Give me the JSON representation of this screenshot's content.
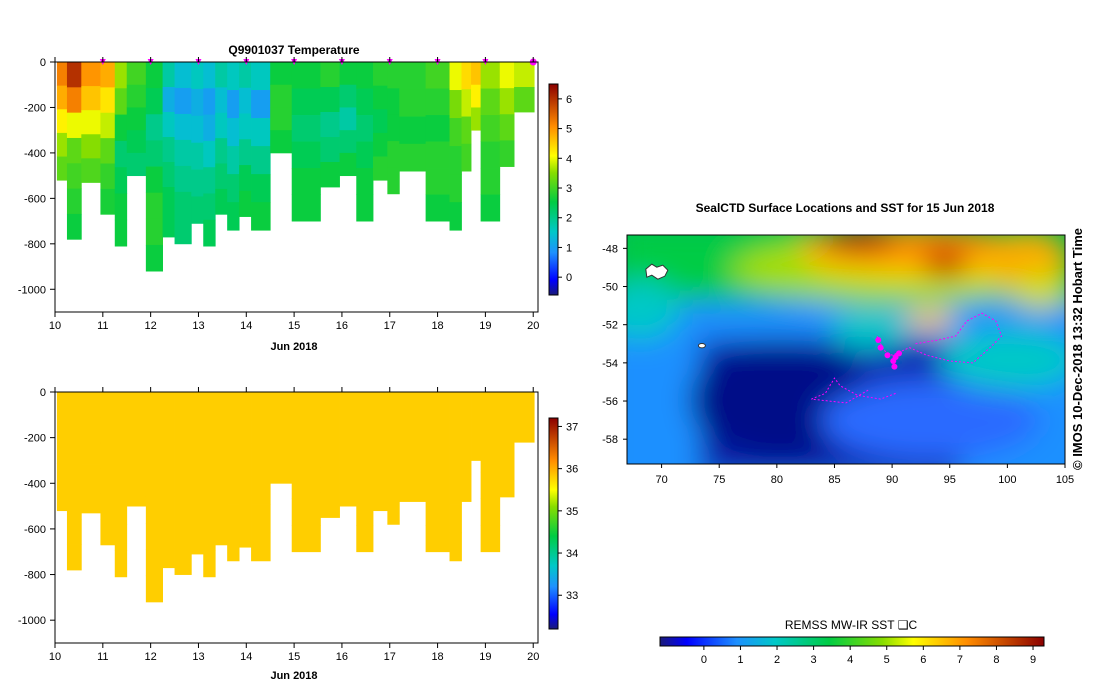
{
  "chart_data": [
    {
      "type": "heatmap",
      "title": "Q9901037  Temperature",
      "xlabel": "Jun 2018",
      "xlim": [
        10,
        20.1
      ],
      "ylim": [
        -1100,
        0
      ],
      "x_ticks": [
        "10",
        "11",
        "12",
        "13",
        "14",
        "15",
        "16",
        "17",
        "18",
        "19",
        "20"
      ],
      "y_ticks": [
        "0",
        "-200",
        "-400",
        "-600",
        "-800",
        "-1000"
      ],
      "colorbar": {
        "min": -0.6,
        "max": 6.5,
        "ticks": [
          "0",
          "1",
          "2",
          "3",
          "4",
          "5",
          "6"
        ]
      },
      "surfacing_days": [
        11,
        12,
        13,
        14,
        15,
        16,
        17,
        18,
        19,
        20
      ],
      "profiles": [
        {
          "day": 10.04,
          "max_depth": 520,
          "temps": [
            5.2,
            4.8,
            4.2,
            3.6,
            3.2
          ]
        },
        {
          "day": 10.25,
          "max_depth": 780,
          "temps": [
            6.0,
            5.2,
            4.0,
            3.2,
            3.0,
            2.8,
            2.6
          ]
        },
        {
          "day": 10.55,
          "max_depth": 530,
          "temps": [
            5.0,
            4.6,
            4.0,
            3.5,
            3.1
          ]
        },
        {
          "day": 10.95,
          "max_depth": 670,
          "temps": [
            4.8,
            4.3,
            3.8,
            3.2,
            2.9,
            2.7
          ]
        },
        {
          "day": 11.25,
          "max_depth": 810,
          "temps": [
            3.6,
            3.2,
            2.6,
            2.2,
            2.4,
            2.6,
            2.6
          ]
        },
        {
          "day": 11.5,
          "max_depth": 500,
          "temps": [
            3.0,
            2.8,
            2.6,
            2.4,
            2.2
          ]
        },
        {
          "day": 11.9,
          "max_depth": 920,
          "temps": [
            2.6,
            2.4,
            2.0,
            2.2,
            2.6,
            2.8,
            2.8,
            2.6
          ]
        },
        {
          "day": 12.25,
          "max_depth": 770,
          "temps": [
            1.8,
            1.2,
            1.6,
            2.0,
            2.2,
            2.4,
            2.4
          ]
        },
        {
          "day": 12.5,
          "max_depth": 800,
          "temps": [
            1.4,
            1.0,
            1.4,
            1.8,
            2.0,
            2.2,
            2.2
          ]
        },
        {
          "day": 12.85,
          "max_depth": 710,
          "temps": [
            1.6,
            1.2,
            1.4,
            1.8,
            2.0,
            2.2
          ]
        },
        {
          "day": 13.1,
          "max_depth": 810,
          "temps": [
            1.4,
            1.0,
            1.2,
            1.6,
            2.0,
            2.2,
            2.4
          ]
        },
        {
          "day": 13.35,
          "max_depth": 670,
          "temps": [
            1.8,
            1.4,
            1.6,
            2.0,
            2.2,
            2.4
          ]
        },
        {
          "day": 13.6,
          "max_depth": 740,
          "temps": [
            1.6,
            1.0,
            1.4,
            1.8,
            2.2,
            2.4
          ]
        },
        {
          "day": 13.85,
          "max_depth": 680,
          "temps": [
            1.8,
            1.4,
            1.6,
            2.0,
            2.4,
            2.6
          ]
        },
        {
          "day": 14.1,
          "max_depth": 740,
          "temps": [
            1.6,
            1.0,
            1.6,
            2.0,
            2.4,
            2.6
          ]
        },
        {
          "day": 14.5,
          "max_depth": 400,
          "temps": [
            2.6,
            2.8,
            2.8,
            2.6
          ]
        },
        {
          "day": 14.95,
          "max_depth": 700,
          "temps": [
            2.6,
            2.4,
            2.2,
            2.4,
            2.6,
            2.6
          ]
        },
        {
          "day": 15.55,
          "max_depth": 550,
          "temps": [
            2.8,
            2.4,
            2.0,
            2.2,
            2.6
          ]
        },
        {
          "day": 15.95,
          "max_depth": 500,
          "temps": [
            2.6,
            2.2,
            1.8,
            2.2,
            2.6
          ]
        },
        {
          "day": 16.3,
          "max_depth": 700,
          "temps": [
            2.6,
            2.4,
            2.2,
            2.4,
            2.6,
            2.6
          ]
        },
        {
          "day": 16.65,
          "max_depth": 520,
          "temps": [
            2.8,
            2.6,
            2.4,
            2.6,
            2.8
          ]
        },
        {
          "day": 16.95,
          "max_depth": 580,
          "temps": [
            2.8,
            2.6,
            2.6,
            2.8,
            2.8
          ]
        },
        {
          "day": 17.2,
          "max_depth": 480,
          "temps": [
            2.8,
            2.8,
            2.6,
            2.8
          ]
        },
        {
          "day": 17.75,
          "max_depth": 700,
          "temps": [
            3.0,
            2.8,
            2.6,
            2.8,
            2.8,
            2.6
          ]
        },
        {
          "day": 18.25,
          "max_depth": 740,
          "temps": [
            4.0,
            3.4,
            3.0,
            2.8,
            2.8,
            2.6
          ]
        },
        {
          "day": 18.5,
          "max_depth": 480,
          "temps": [
            4.4,
            3.8,
            3.2,
            3.0
          ]
        },
        {
          "day": 18.7,
          "max_depth": 300,
          "temps": [
            4.6,
            4.2,
            3.6
          ]
        },
        {
          "day": 18.9,
          "max_depth": 700,
          "temps": [
            3.6,
            3.2,
            3.0,
            2.8,
            2.8,
            2.6
          ]
        },
        {
          "day": 19.3,
          "max_depth": 460,
          "temps": [
            4.0,
            3.6,
            3.2,
            2.9
          ]
        },
        {
          "day": 19.6,
          "max_depth": 220,
          "temps": [
            3.8,
            3.2
          ]
        }
      ]
    },
    {
      "type": "heatmap",
      "title": "",
      "xlabel": "Jun 2018",
      "xlim": [
        10,
        20.1
      ],
      "ylim": [
        -1100,
        0
      ],
      "x_ticks": [
        "10",
        "11",
        "12",
        "13",
        "14",
        "15",
        "16",
        "17",
        "18",
        "19",
        "20"
      ],
      "y_ticks": [
        "0",
        "-200",
        "-400",
        "-600",
        "-800",
        "-1000"
      ],
      "colorbar": {
        "min": 32.2,
        "max": 37.2,
        "ticks": [
          "33",
          "34",
          "35",
          "36",
          "37"
        ]
      },
      "uniform_value": 35.8,
      "profile_source": "same profiles as temperature panel"
    },
    {
      "type": "heatmap",
      "title": "SealCTD Surface Locations and SST for 15 Jun 2018",
      "xlim": [
        67,
        105
      ],
      "ylim": [
        -59.3,
        -47.3
      ],
      "x_ticks": [
        "70",
        "75",
        "80",
        "85",
        "90",
        "95",
        "100",
        "105"
      ],
      "y_ticks": [
        "-48",
        "-50",
        "-52",
        "-54",
        "-56",
        "-58"
      ],
      "side_label": "© IMOS 10-Dec-2018 13:32 Hobart Time",
      "colorbar": {
        "label": "REMSS MW-IR SST ❑C",
        "min": -1.2,
        "max": 9.3,
        "ticks": [
          "0",
          "1",
          "2",
          "3",
          "4",
          "5",
          "6",
          "7",
          "8",
          "9"
        ]
      },
      "track": [
        [
          88.7,
          -52.6
        ],
        [
          89.0,
          -53.0
        ],
        [
          89.4,
          -53.4
        ],
        [
          90.0,
          -53.6
        ],
        [
          90.4,
          -53.5
        ],
        [
          91.5,
          -53.2
        ],
        [
          93.0,
          -53.6
        ],
        [
          95.0,
          -53.9
        ],
        [
          97.0,
          -54.0
        ],
        [
          98.5,
          -53.2
        ],
        [
          99.5,
          -52.6
        ],
        [
          99.0,
          -51.8
        ],
        [
          97.8,
          -51.4
        ],
        [
          96.5,
          -51.8
        ],
        [
          95.5,
          -52.6
        ],
        [
          94.0,
          -52.8
        ],
        [
          92.0,
          -53.0
        ]
      ],
      "track2": [
        [
          90.3,
          -55.6
        ],
        [
          89.0,
          -55.9
        ],
        [
          87.0,
          -55.7
        ],
        [
          85.5,
          -55.2
        ],
        [
          85.0,
          -54.8
        ],
        [
          84.2,
          -55.6
        ],
        [
          83.0,
          -55.9
        ],
        [
          86.0,
          -56.1
        ],
        [
          88.0,
          -55.4
        ]
      ],
      "positions": [
        [
          88.8,
          -52.8
        ],
        [
          89.0,
          -53.2
        ],
        [
          89.6,
          -53.6
        ],
        [
          90.1,
          -53.9
        ],
        [
          90.3,
          -53.7
        ],
        [
          90.6,
          -53.5
        ],
        [
          90.2,
          -54.2
        ]
      ],
      "islands": [
        [
          69.5,
          -49.3
        ],
        [
          73.5,
          -53.1
        ]
      ]
    }
  ]
}
